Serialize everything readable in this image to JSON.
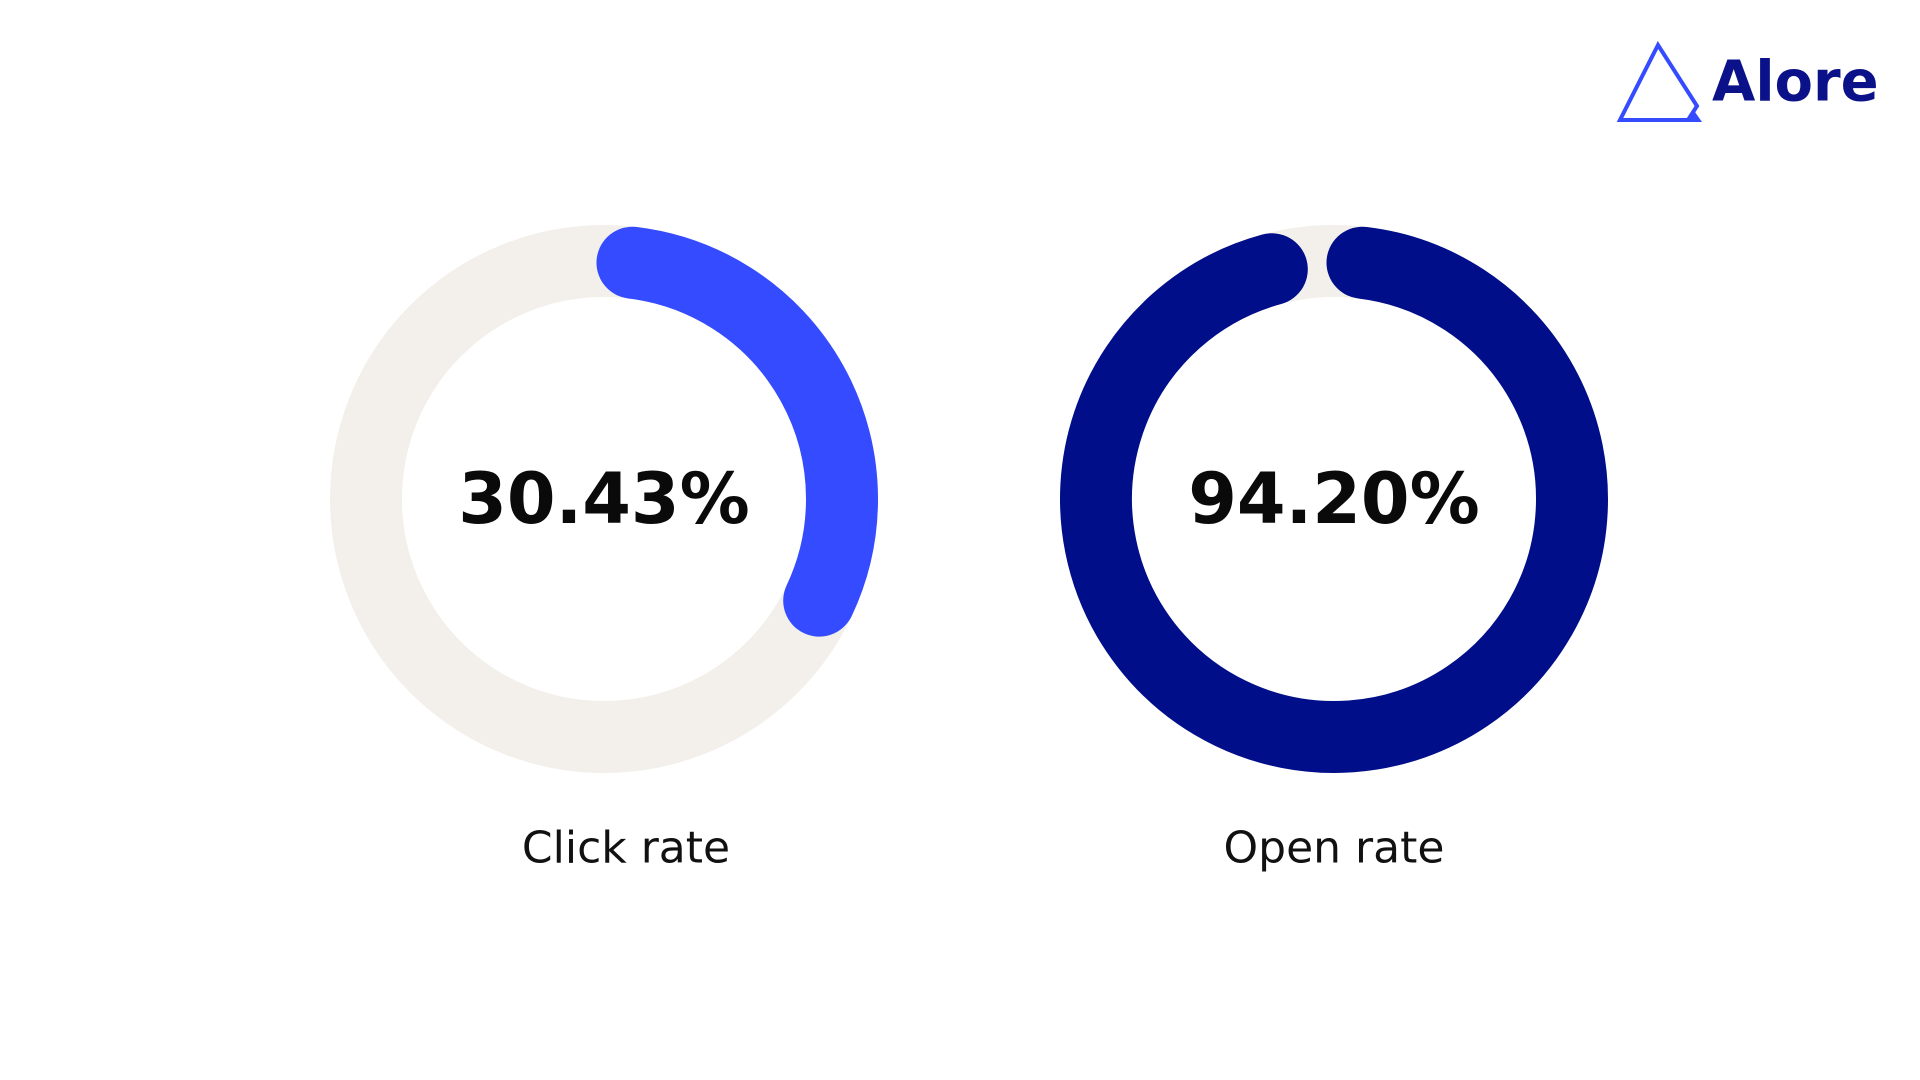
{
  "logo": {
    "text": "Alore"
  },
  "chart_data": [
    {
      "type": "donut",
      "title": "Click rate",
      "values": [
        30.43
      ],
      "value_labels": [
        "30.43%"
      ],
      "ylim": [
        0,
        100
      ],
      "color": "#344bff",
      "track_color": "#f3f0eb"
    },
    {
      "type": "donut",
      "title": "Open rate",
      "values": [
        94.2
      ],
      "value_labels": [
        "94.20%"
      ],
      "ylim": [
        0,
        100
      ],
      "color": "#000e8a",
      "track_color": "#f3f0eb"
    }
  ]
}
